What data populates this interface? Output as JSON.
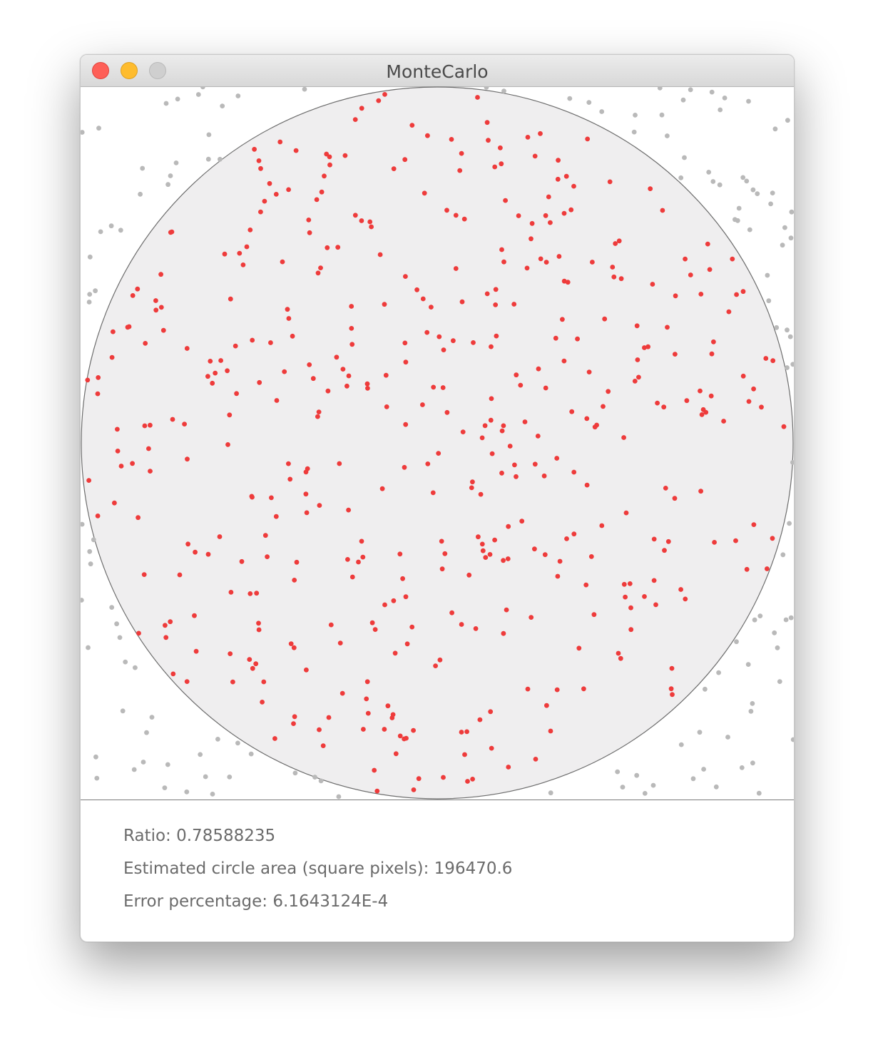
{
  "window": {
    "title": "MonteCarlo"
  },
  "stats": {
    "ratio": "Ratio: 0.78588235",
    "area": "Estimated circle area (square pixels): 196470.6",
    "error": "Error percentage: 6.1643124E-4"
  },
  "colors": {
    "inside_point": "#ee3b3b",
    "outside_point": "#b9b9b9",
    "circle_fill": "#efeeef",
    "circle_stroke": "#6d6d6d"
  }
}
